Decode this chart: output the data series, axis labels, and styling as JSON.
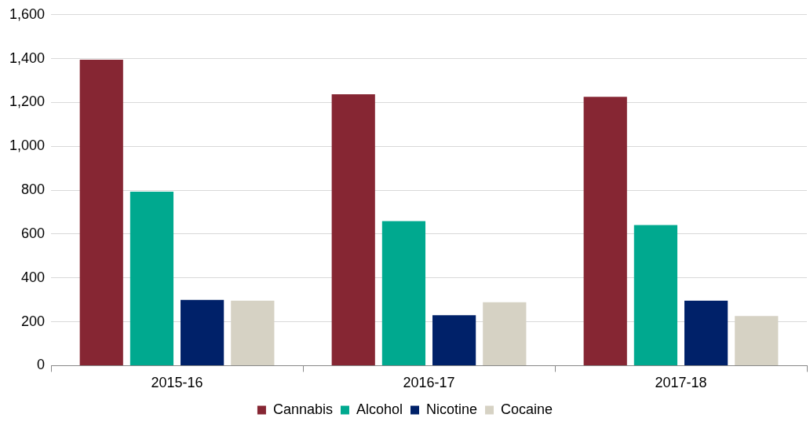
{
  "chart_data": {
    "type": "bar",
    "categories": [
      "2015-16",
      "2016-17",
      "2017-18"
    ],
    "series": [
      {
        "name": "Cannabis",
        "color": "#862633",
        "values": [
          1395,
          1237,
          1226
        ]
      },
      {
        "name": "Alcohol",
        "color": "#00a98f",
        "values": [
          793,
          659,
          641
        ]
      },
      {
        "name": "Nicotine",
        "color": "#002169",
        "values": [
          300,
          230,
          296
        ]
      },
      {
        "name": "Cocaine",
        "color": "#d6d2c4",
        "values": [
          296,
          289,
          226
        ]
      }
    ],
    "ylim": [
      0,
      1600
    ],
    "yticks": [
      0,
      200,
      400,
      600,
      800,
      {
        "value": 1000,
        "label": "1,000"
      },
      {
        "value": 1200,
        "label": "1,200"
      },
      {
        "value": 1400,
        "label": "1,400"
      },
      {
        "value": 1600,
        "label": "1,600"
      }
    ],
    "grid": "y",
    "legend": "bottom"
  }
}
